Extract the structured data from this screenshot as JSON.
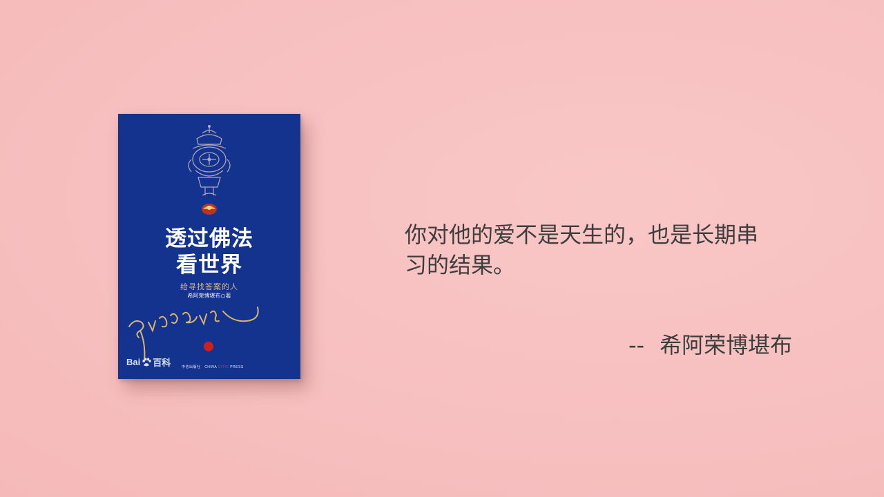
{
  "quote": {
    "line1": "你对他的爱不是天生的，也是长期串",
    "line2": "习的结果。"
  },
  "attribution": {
    "dash": "--",
    "author": "希阿荣博堪布"
  },
  "book": {
    "title_line1": "透过佛法",
    "title_line2": "看世界",
    "subtitle": "给寻找答案的人",
    "author": "希阿荣博堪布○著",
    "watermark_left": "Bai",
    "watermark_right": "百科",
    "publisher": "中信出版社",
    "publisher_en_left": "CHINA ",
    "publisher_en_mid": "CITIC",
    "publisher_en_right": " PRESS",
    "cover_color": "#14338f",
    "accent_color": "#d7b98b",
    "emblem_icon": "buddhist-emblem-icon",
    "signature_icon": "tibetan-signature-icon"
  },
  "colors": {
    "background": "#f8c1c1",
    "text": "#3d3d3d"
  }
}
